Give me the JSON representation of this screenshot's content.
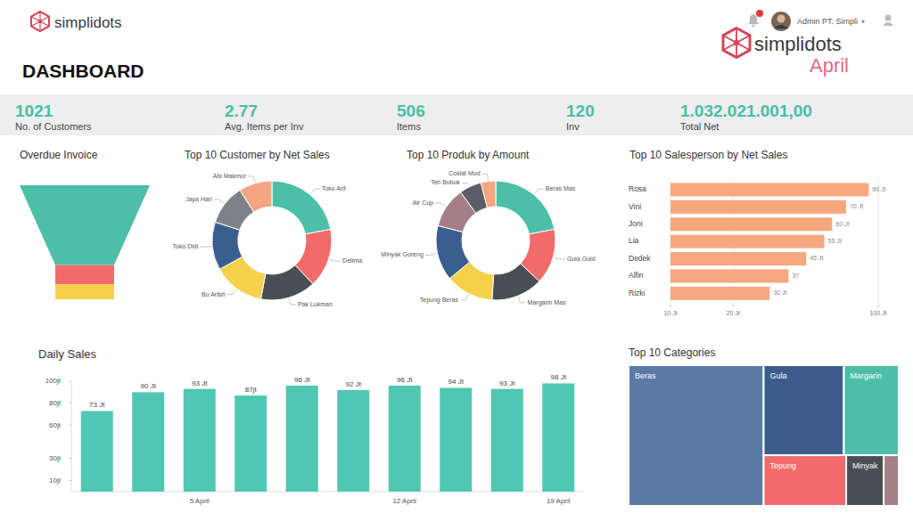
{
  "header": {
    "logo": "simplidots",
    "title": "DASHBOARD",
    "user": "Admin PT. Simpli",
    "brand": "simplidots",
    "period": "April"
  },
  "kpis": [
    {
      "value": "1021",
      "label": "No. of Customers"
    },
    {
      "value": "2.77",
      "label": "Avg. Items per Inv"
    },
    {
      "value": "506",
      "label": "Items"
    },
    {
      "value": "120",
      "label": "Inv"
    },
    {
      "value": "1.032.021.001,00",
      "label": "Total Net"
    }
  ],
  "chart_data": [
    {
      "type": "funnel",
      "title": "Overdue Invoice",
      "categories": [
        null,
        null,
        null
      ],
      "values": [
        70,
        17,
        13
      ],
      "colors": [
        "#4dbfa9",
        "#f26b6b",
        "#f5d04a"
      ]
    },
    {
      "type": "donut",
      "title": "Top 10 Customer by Net Sales",
      "categories": [
        "Toko Arif",
        "Delima",
        "Pak Lukman",
        "Bu Arfah",
        "Toko Didi",
        "Jaya Hari",
        "Abi Makmur"
      ],
      "values": [
        22,
        16,
        15,
        14,
        13,
        11,
        9
      ],
      "colors": [
        "#4dbfa9",
        "#f26b6b",
        "#4a4f54",
        "#f5d04a",
        "#3a5f8f",
        "#7d8288",
        "#f4a582"
      ]
    },
    {
      "type": "donut",
      "title": "Top 10 Produk by Amount",
      "categories": [
        "Beras Mas",
        "Gula Gold",
        "Margarin Mas",
        "Tepung Beras",
        "Minyak Goreng",
        "Air Cup",
        "Teh Bubuk",
        "Coklat Mod"
      ],
      "values": [
        22,
        15,
        14,
        13,
        15,
        11,
        6,
        4
      ],
      "colors": [
        "#4dbfa9",
        "#f26b6b",
        "#4a4f54",
        "#f5d04a",
        "#3a5f8f",
        "#a47f87",
        "#5b5f63",
        "#f4a582"
      ]
    },
    {
      "type": "bar",
      "title": "Top 10 Salesperson by Net Sales",
      "orientation": "horizontal",
      "categories": [
        "Rosa",
        "Vini",
        "Joni",
        "Lia",
        "Dedek",
        "Alfin",
        "Rizki"
      ],
      "values": [
        90,
        70,
        60,
        55,
        45,
        37,
        30
      ],
      "value_labels": [
        "90 Jt",
        "70 Jt",
        "60 Jt",
        "55 Jt",
        "45 Jt",
        "37",
        "30 Jt"
      ],
      "data_labels": true,
      "color": "#f7a77e",
      "log": "x",
      "xlim": [
        10,
        100
      ],
      "xticks": [
        {
          "value": 10,
          "label": "10 Jt"
        },
        {
          "value": 20,
          "label": "20 Jt"
        },
        {
          "value": 100,
          "label": "100 Jt"
        }
      ],
      "grid": true
    },
    {
      "type": "bar",
      "title": "Daily Sales",
      "categories": [
        null,
        null,
        "5 April",
        null,
        null,
        null,
        "12 April",
        null,
        null,
        "19 April"
      ],
      "values": [
        73,
        90,
        93,
        87,
        96,
        92,
        96,
        94,
        93,
        98
      ],
      "value_labels": [
        "73 Jt",
        "90 Jt",
        "93 Jt",
        "87jt",
        "96 Jt",
        "92 Jt",
        "96 Jt",
        "94 Jt",
        "93 Jt",
        "98 Jt"
      ],
      "data_labels": true,
      "color": "#4fc7b2",
      "ylim": [
        0,
        100
      ],
      "yticks": [
        {
          "value": 10,
          "label": "10jt"
        },
        {
          "value": 30,
          "label": "30jt"
        },
        {
          "value": 60,
          "label": "60jt"
        },
        {
          "value": 80,
          "label": "80jt"
        },
        {
          "value": 100,
          "label": "100jt"
        }
      ],
      "grid": false
    },
    {
      "type": "treemap",
      "title": "Top 10 Categories",
      "categories": [
        "Beras",
        "Gula",
        "Margarin",
        "Tepung",
        "Minyak",
        null
      ],
      "values": [
        50,
        19,
        13,
        11,
        5,
        2
      ],
      "colors": [
        "#5b7ba6",
        "#3c5d8c",
        "#4dbfa9",
        "#f26b6b",
        "#4a4f54",
        "#a47f87"
      ]
    }
  ]
}
